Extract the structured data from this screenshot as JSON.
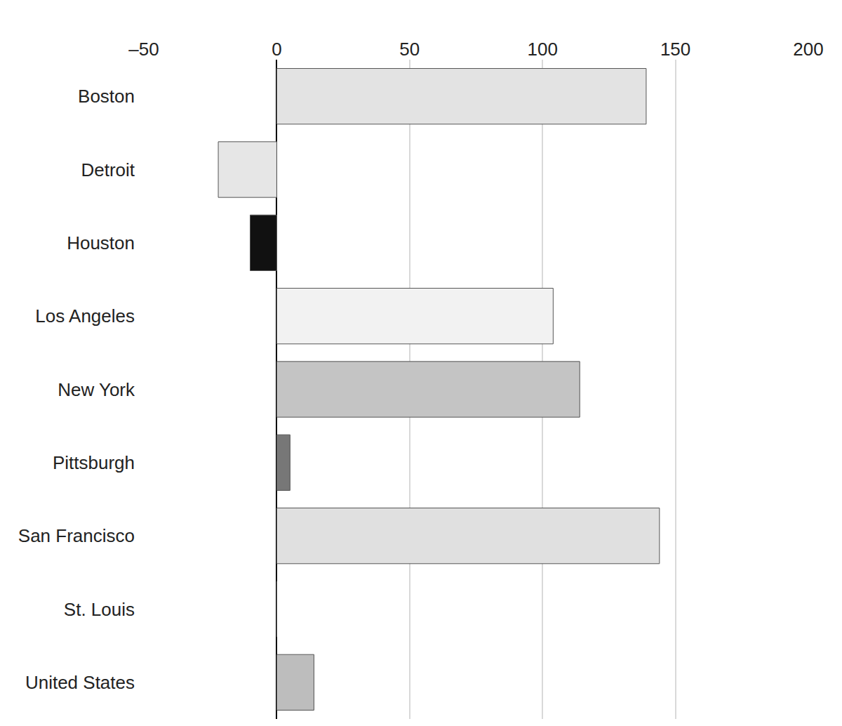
{
  "chart_data": {
    "type": "bar",
    "orientation": "horizontal",
    "categories": [
      "Boston",
      "Detroit",
      "Houston",
      "Los Angeles",
      "New York",
      "Pittsburgh",
      "San Francisco",
      "St. Louis",
      "United States"
    ],
    "values": [
      139,
      -22,
      -10,
      104,
      114,
      5,
      144,
      0,
      14
    ],
    "colors": [
      "#e3e3e3",
      "#e6e6e6",
      "#111111",
      "#f2f2f2",
      "#c4c4c4",
      "#777777",
      "#e0e0e0",
      "#ffffff",
      "#bdbdbd"
    ],
    "xlim": [
      -50,
      200
    ],
    "xticks": [
      {
        "value": -50,
        "label": "–50"
      },
      0,
      50,
      100,
      150,
      200
    ],
    "grid": true
  }
}
